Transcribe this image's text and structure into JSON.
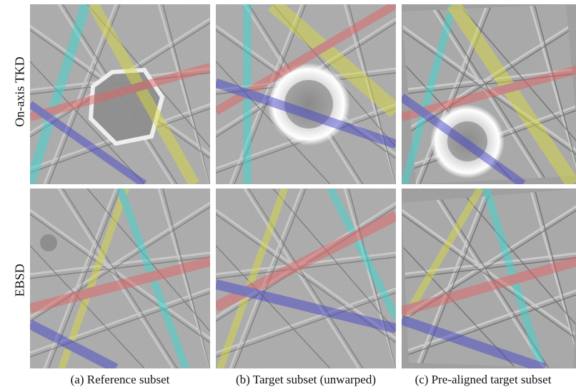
{
  "row_labels": [
    "On-axis TKD",
    "EBSD"
  ],
  "captions": [
    "(a) Reference subset",
    "(b) Target subset (unwarped)",
    "(c) Pre-aligned target subset"
  ],
  "band_colors": {
    "cyan": "#3fd6d0",
    "yellow": "#d9d944",
    "red": "#e06464",
    "blue": "#4848c8"
  }
}
